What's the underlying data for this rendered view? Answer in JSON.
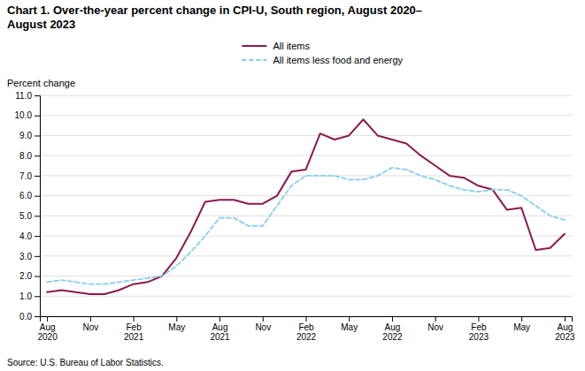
{
  "chart_data": {
    "type": "line",
    "title": "Chart 1. Over-the-year percent change in CPI-U, South region, August 2020–\nAugust 2023",
    "y_label": "Percent change",
    "source": "Source: U.S. Bureau of Labor Statistics.",
    "categories": [
      "Aug\n2020",
      null,
      null,
      "Nov",
      null,
      null,
      "Feb\n2021",
      null,
      null,
      "May",
      null,
      null,
      "Aug\n2021",
      null,
      null,
      "Nov",
      null,
      null,
      "Feb\n2022",
      null,
      null,
      "May",
      null,
      null,
      "Aug\n2022",
      null,
      null,
      "Nov",
      null,
      null,
      "Feb\n2023",
      null,
      null,
      "May",
      null,
      null,
      "Aug\n2023"
    ],
    "series": [
      {
        "name": "All items",
        "color": "#8B1A4A",
        "line_style": "solid",
        "values": [
          1.2,
          1.3,
          1.2,
          1.1,
          1.1,
          1.3,
          1.6,
          1.7,
          2.0,
          2.9,
          4.2,
          5.7,
          5.8,
          5.8,
          5.6,
          5.6,
          6.0,
          7.2,
          7.3,
          9.1,
          8.8,
          9.0,
          9.8,
          9.0,
          8.8,
          8.6,
          8.0,
          7.5,
          7.0,
          6.9,
          6.5,
          6.3,
          5.3,
          5.4,
          3.3,
          3.4,
          4.1
        ]
      },
      {
        "name": "All items less food and energy",
        "color": "#87CEEB",
        "line_style": "dashed",
        "values": [
          1.7,
          1.8,
          1.7,
          1.6,
          1.6,
          1.7,
          1.8,
          1.9,
          2.0,
          2.5,
          3.2,
          4.0,
          4.9,
          4.9,
          4.5,
          4.5,
          5.5,
          6.5,
          7.0,
          7.0,
          7.0,
          6.8,
          6.8,
          7.0,
          7.4,
          7.3,
          7.0,
          6.8,
          6.5,
          6.3,
          6.2,
          6.3,
          6.3,
          6.0,
          5.5,
          5.0,
          4.8
        ]
      }
    ],
    "ylim": [
      0.0,
      11.0
    ],
    "yticks": [
      {
        "value": 0,
        "label": "0.0"
      },
      {
        "value": 1,
        "label": "1.0"
      },
      {
        "value": 2,
        "label": "2.0"
      },
      {
        "value": 3,
        "label": "3.0"
      },
      {
        "value": 4,
        "label": "4.0"
      },
      {
        "value": 5,
        "label": "5.0"
      },
      {
        "value": 6,
        "label": "6.0"
      },
      {
        "value": 7,
        "label": "7.0"
      },
      {
        "value": 8,
        "label": "8.0"
      },
      {
        "value": 9,
        "label": "9.0"
      },
      {
        "value": 10,
        "label": "10.0"
      },
      {
        "value": 11,
        "label": "11.0"
      }
    ],
    "grid": "y",
    "legend": "top"
  }
}
